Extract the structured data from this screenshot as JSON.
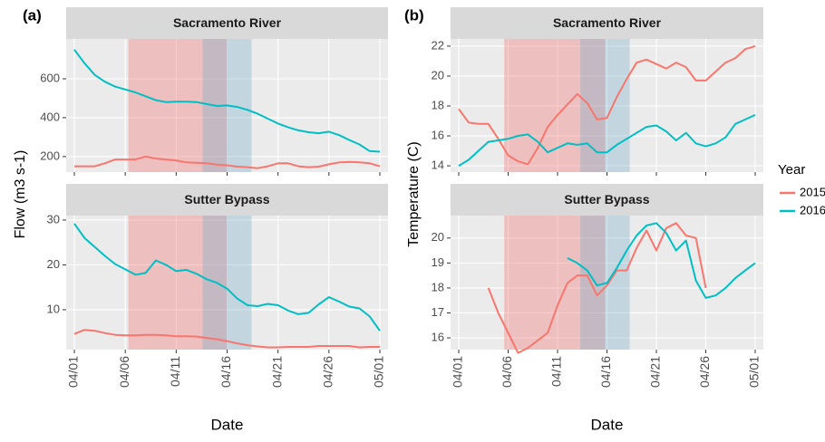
{
  "chart_data": [
    {
      "type": "line",
      "panel_label": "(a)",
      "title": "Sacramento River",
      "y_label": "Flow (m3 s-1)",
      "categories": [
        "04/01",
        null,
        null,
        null,
        null,
        "04/06",
        null,
        null,
        null,
        null,
        "04/11",
        null,
        null,
        null,
        null,
        "04/16",
        null,
        null,
        null,
        null,
        "04/21",
        null,
        null,
        null,
        null,
        "04/26",
        null,
        null,
        null,
        null,
        "05/01"
      ],
      "ylim": [
        120,
        805
      ],
      "yticks": [
        200,
        400,
        600
      ],
      "grid": true,
      "highlights": [
        {
          "from": 5.3,
          "to": 15,
          "color": "rgba(240,110,110,0.35)"
        },
        {
          "from": 12.6,
          "to": 17.4,
          "color": "rgba(120,175,200,0.35)"
        }
      ],
      "series": [
        {
          "name": "2015",
          "color": "#F8766D",
          "values": [
            150,
            150,
            150,
            165,
            185,
            185,
            185,
            200,
            190,
            185,
            180,
            170,
            168,
            165,
            158,
            155,
            148,
            145,
            140,
            150,
            165,
            165,
            150,
            145,
            148,
            160,
            170,
            172,
            170,
            165,
            150
          ]
        },
        {
          "name": "2016",
          "color": "#00BFC4",
          "values": [
            750,
            680,
            620,
            585,
            560,
            545,
            530,
            510,
            490,
            480,
            482,
            482,
            480,
            470,
            460,
            463,
            455,
            440,
            420,
            395,
            370,
            350,
            335,
            325,
            320,
            328,
            310,
            285,
            262,
            228,
            225
          ]
        }
      ]
    },
    {
      "type": "line",
      "panel_label": "(b)",
      "title": "Sacramento River",
      "y_label": "Temperature (C)",
      "categories": [
        "04/01",
        null,
        null,
        null,
        null,
        "04/06",
        null,
        null,
        null,
        null,
        "04/11",
        null,
        null,
        null,
        null,
        "04/16",
        null,
        null,
        null,
        null,
        "04/21",
        null,
        null,
        null,
        null,
        "04/26",
        null,
        null,
        null,
        null,
        "05/01"
      ],
      "ylim": [
        13.58,
        22.48
      ],
      "yticks": [
        14,
        16,
        18,
        20,
        22
      ],
      "grid": true,
      "highlights": [
        {
          "from": 4.6,
          "to": 14.8,
          "color": "rgba(240,110,110,0.35)"
        },
        {
          "from": 12.3,
          "to": 17.3,
          "color": "rgba(120,175,200,0.35)"
        }
      ],
      "series": [
        {
          "name": "2015",
          "color": "#F8766D",
          "values": [
            17.8,
            16.9,
            16.8,
            16.8,
            15.8,
            14.7,
            14.3,
            14.1,
            15.2,
            16.6,
            17.4,
            18.1,
            18.8,
            18.2,
            17.1,
            17.2,
            18.6,
            19.8,
            20.9,
            21.1,
            20.8,
            20.5,
            20.9,
            20.6,
            19.7,
            19.7,
            20.3,
            20.9,
            21.2,
            21.8,
            22.0
          ]
        },
        {
          "name": "2016",
          "color": "#00BFC4",
          "values": [
            14.0,
            14.4,
            15.0,
            15.6,
            15.7,
            15.8,
            16.0,
            16.1,
            15.6,
            14.9,
            15.2,
            15.5,
            15.4,
            15.5,
            14.9,
            14.9,
            15.4,
            15.8,
            16.2,
            16.6,
            16.7,
            16.3,
            15.7,
            16.2,
            15.5,
            15.3,
            15.5,
            15.9,
            16.8,
            17.1,
            17.4
          ]
        }
      ]
    },
    {
      "type": "line",
      "title": "Sutter Bypass",
      "x_label": "Date",
      "categories": [
        "04/01",
        null,
        null,
        null,
        null,
        "04/06",
        null,
        null,
        null,
        null,
        "04/11",
        null,
        null,
        null,
        null,
        "04/16",
        null,
        null,
        null,
        null,
        "04/21",
        null,
        null,
        null,
        null,
        "04/26",
        null,
        null,
        null,
        null,
        "05/01"
      ],
      "ylim": [
        1.1,
        31
      ],
      "yticks": [
        10,
        20,
        30
      ],
      "grid": true,
      "highlights": [
        {
          "from": 5.3,
          "to": 15,
          "color": "rgba(240,110,110,0.35)"
        },
        {
          "from": 12.6,
          "to": 17.4,
          "color": "rgba(120,175,200,0.35)"
        }
      ],
      "series": [
        {
          "name": "2015",
          "color": "#F8766D",
          "values": [
            4.6,
            5.5,
            5.3,
            4.8,
            4.4,
            4.3,
            4.3,
            4.4,
            4.4,
            4.3,
            4.1,
            4.1,
            4.0,
            3.7,
            3.4,
            3.0,
            2.5,
            2.1,
            1.8,
            1.6,
            1.6,
            1.7,
            1.7,
            1.7,
            1.9,
            1.9,
            1.9,
            1.9,
            1.6,
            1.7,
            1.7
          ]
        },
        {
          "name": "2016",
          "color": "#00BFC4",
          "values": [
            29.2,
            26,
            24,
            22,
            20.2,
            19,
            17.8,
            18.2,
            21,
            20,
            18.6,
            18.9,
            18,
            16.8,
            16,
            14.7,
            12.5,
            11,
            10.8,
            11.3,
            11,
            9.8,
            9,
            9.3,
            11.2,
            12.8,
            11.8,
            10.7,
            10.3,
            8.5,
            5.3
          ]
        }
      ]
    },
    {
      "type": "line",
      "title": "Sutter Bypass",
      "x_label": "Date",
      "categories": [
        "04/01",
        null,
        null,
        null,
        null,
        "04/06",
        null,
        null,
        null,
        null,
        "04/11",
        null,
        null,
        null,
        null,
        "04/16",
        null,
        null,
        null,
        null,
        "04/21",
        null,
        null,
        null,
        null,
        "04/26",
        null,
        null,
        null,
        null,
        "05/01"
      ],
      "ylim": [
        15.53,
        20.9
      ],
      "yticks": [
        16,
        17,
        18,
        19,
        20
      ],
      "grid": true,
      "highlights": [
        {
          "from": 4.6,
          "to": 14.8,
          "color": "rgba(240,110,110,0.35)"
        },
        {
          "from": 12.3,
          "to": 17.3,
          "color": "rgba(120,175,200,0.35)"
        }
      ],
      "series": [
        {
          "name": "2015",
          "color": "#F8766D",
          "values": [
            null,
            null,
            null,
            18.0,
            17.0,
            16.2,
            15.4,
            15.6,
            15.9,
            16.2,
            17.3,
            18.2,
            18.5,
            18.5,
            17.7,
            18.1,
            18.7,
            18.7,
            19.6,
            20.3,
            19.5,
            20.4,
            20.6,
            20.1,
            20.0,
            18.0,
            null,
            null,
            null,
            null,
            null
          ]
        },
        {
          "name": "2016",
          "color": "#00BFC4",
          "values": [
            null,
            null,
            null,
            null,
            null,
            null,
            null,
            null,
            null,
            null,
            null,
            19.2,
            19.0,
            18.7,
            18.1,
            18.2,
            18.8,
            19.5,
            20.1,
            20.5,
            20.6,
            20.2,
            19.5,
            19.9,
            18.3,
            17.6,
            17.7,
            18.0,
            18.4,
            18.7,
            19.0
          ]
        }
      ]
    }
  ],
  "legend": {
    "title": "Year"
  }
}
